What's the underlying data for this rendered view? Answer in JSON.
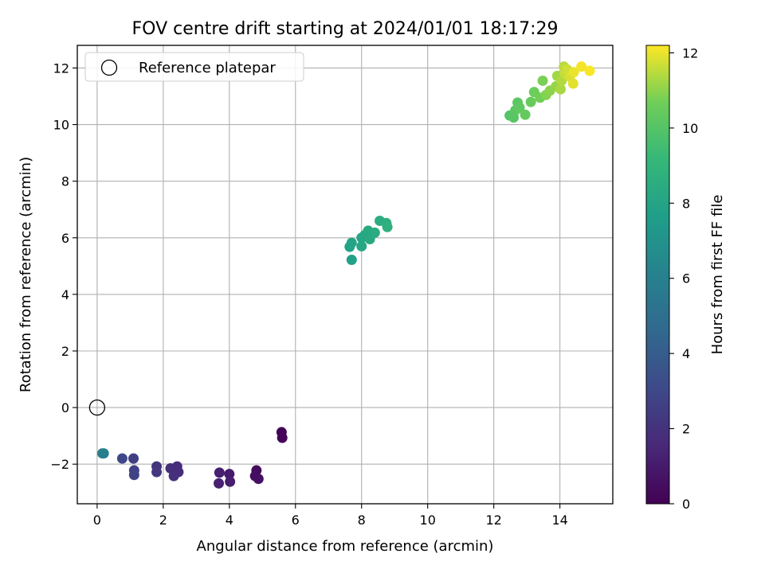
{
  "chart_data": {
    "type": "scatter",
    "title": "FOV centre drift starting at 2024/01/01 18:17:29",
    "xlabel": "Angular distance from reference (arcmin)",
    "ylabel": "Rotation from reference (arcmin)",
    "xlim": [
      -0.6,
      15.6
    ],
    "ylim": [
      -3.4,
      12.8
    ],
    "x_ticks": [
      0,
      2,
      4,
      6,
      8,
      10,
      12,
      14
    ],
    "y_ticks": [
      -2,
      0,
      2,
      4,
      6,
      8,
      10,
      12
    ],
    "x_tick_labels": [
      "0",
      "2",
      "4",
      "6",
      "8",
      "10",
      "12",
      "14"
    ],
    "y_tick_labels": [
      "−2",
      "0",
      "2",
      "4",
      "6",
      "8",
      "10",
      "12"
    ],
    "grid": true,
    "legend": {
      "position": "top-left",
      "label": "Reference platepar"
    },
    "reference": {
      "x": 0,
      "y": 0
    },
    "colorbar": {
      "label": "Hours from first FF file",
      "range": [
        0,
        12.2
      ],
      "ticks": [
        0,
        2,
        4,
        6,
        8,
        10,
        12
      ],
      "tick_labels": [
        "0",
        "2",
        "4",
        "6",
        "8",
        "10",
        "12"
      ],
      "colormap": "viridis"
    },
    "points": [
      {
        "x": 5.58,
        "y": -0.87,
        "t": 0.1
      },
      {
        "x": 5.6,
        "y": -1.07,
        "t": 0.2
      },
      {
        "x": 4.82,
        "y": -2.22,
        "t": 0.4
      },
      {
        "x": 4.78,
        "y": -2.42,
        "t": 0.5
      },
      {
        "x": 4.88,
        "y": -2.52,
        "t": 0.6
      },
      {
        "x": 4.0,
        "y": -2.35,
        "t": 1.0
      },
      {
        "x": 4.02,
        "y": -2.62,
        "t": 1.1
      },
      {
        "x": 3.7,
        "y": -2.3,
        "t": 1.2
      },
      {
        "x": 3.68,
        "y": -2.68,
        "t": 1.3
      },
      {
        "x": 2.42,
        "y": -2.08,
        "t": 1.7
      },
      {
        "x": 2.46,
        "y": -2.28,
        "t": 1.75
      },
      {
        "x": 2.22,
        "y": -2.15,
        "t": 1.8
      },
      {
        "x": 2.32,
        "y": -2.42,
        "t": 1.9
      },
      {
        "x": 1.8,
        "y": -2.08,
        "t": 2.1
      },
      {
        "x": 1.8,
        "y": -2.28,
        "t": 2.2
      },
      {
        "x": 1.1,
        "y": -1.8,
        "t": 2.6
      },
      {
        "x": 1.12,
        "y": -2.22,
        "t": 2.7
      },
      {
        "x": 1.12,
        "y": -2.38,
        "t": 2.8
      },
      {
        "x": 0.76,
        "y": -1.8,
        "t": 3.0
      },
      {
        "x": 0.16,
        "y": -1.62,
        "t": 5.8
      },
      {
        "x": 0.2,
        "y": -1.62,
        "t": 5.9
      },
      {
        "x": 7.7,
        "y": 5.22,
        "t": 7.8
      },
      {
        "x": 7.64,
        "y": 5.68,
        "t": 7.9
      },
      {
        "x": 7.7,
        "y": 5.82,
        "t": 8.0
      },
      {
        "x": 8.0,
        "y": 5.7,
        "t": 8.1
      },
      {
        "x": 8.0,
        "y": 6.0,
        "t": 8.1
      },
      {
        "x": 8.1,
        "y": 6.1,
        "t": 8.2
      },
      {
        "x": 8.2,
        "y": 6.25,
        "t": 8.3
      },
      {
        "x": 8.25,
        "y": 5.95,
        "t": 8.3
      },
      {
        "x": 8.4,
        "y": 6.18,
        "t": 8.4
      },
      {
        "x": 8.55,
        "y": 6.6,
        "t": 8.5
      },
      {
        "x": 8.75,
        "y": 6.52,
        "t": 8.6
      },
      {
        "x": 8.78,
        "y": 6.38,
        "t": 8.7
      },
      {
        "x": 12.48,
        "y": 10.32,
        "t": 10.0
      },
      {
        "x": 12.6,
        "y": 10.25,
        "t": 10.1
      },
      {
        "x": 12.65,
        "y": 10.5,
        "t": 10.2
      },
      {
        "x": 12.72,
        "y": 10.78,
        "t": 10.2
      },
      {
        "x": 12.78,
        "y": 10.6,
        "t": 10.3
      },
      {
        "x": 12.95,
        "y": 10.35,
        "t": 10.4
      },
      {
        "x": 13.12,
        "y": 10.8,
        "t": 10.5
      },
      {
        "x": 13.22,
        "y": 11.15,
        "t": 10.6
      },
      {
        "x": 13.4,
        "y": 10.95,
        "t": 10.7
      },
      {
        "x": 13.48,
        "y": 11.55,
        "t": 10.8
      },
      {
        "x": 13.58,
        "y": 11.05,
        "t": 10.9
      },
      {
        "x": 13.7,
        "y": 11.2,
        "t": 11.0
      },
      {
        "x": 13.88,
        "y": 11.35,
        "t": 11.1
      },
      {
        "x": 13.92,
        "y": 11.72,
        "t": 11.2
      },
      {
        "x": 14.02,
        "y": 11.25,
        "t": 11.3
      },
      {
        "x": 14.05,
        "y": 11.55,
        "t": 11.4
      },
      {
        "x": 14.12,
        "y": 12.05,
        "t": 11.5
      },
      {
        "x": 14.15,
        "y": 11.8,
        "t": 11.6
      },
      {
        "x": 14.22,
        "y": 11.95,
        "t": 11.7
      },
      {
        "x": 14.3,
        "y": 11.7,
        "t": 11.8
      },
      {
        "x": 14.4,
        "y": 11.45,
        "t": 11.9
      },
      {
        "x": 14.42,
        "y": 11.85,
        "t": 12.0
      },
      {
        "x": 14.65,
        "y": 12.05,
        "t": 12.1
      },
      {
        "x": 14.9,
        "y": 11.9,
        "t": 12.15
      }
    ]
  }
}
